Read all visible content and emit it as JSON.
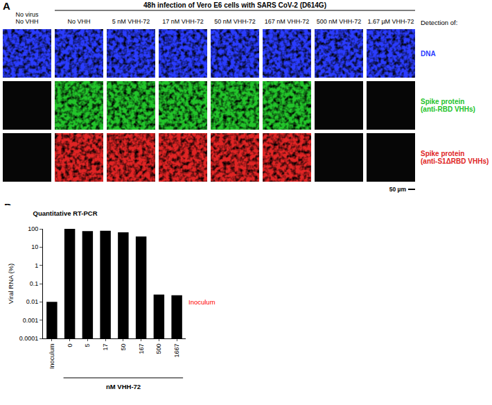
{
  "panel_a": {
    "label": "A",
    "title": "48h infection of Vero E6 cells with SARS CoV-2 (D614G)",
    "columns": [
      "No virus\nNo VHH",
      "No VHH",
      "5 nM VHH-72",
      "17 nM VHH-72",
      "50 nM VHH-72",
      "167 nM VHH-72",
      "500 nM VHH-72",
      "1.67 µM VHH-72"
    ],
    "header": "Detection of:",
    "rows": [
      {
        "label": "DNA",
        "color": "#2a3cff",
        "signal": [
          true,
          true,
          true,
          true,
          true,
          true,
          true,
          true
        ]
      },
      {
        "label": "Spike protein\n(anti-RBD VHHs)",
        "color": "#22c42a",
        "signal": [
          false,
          true,
          true,
          true,
          true,
          true,
          false,
          false
        ]
      },
      {
        "label": "Spike protein\n(anti-S1ΔRBD VHHs)",
        "color": "#e02424",
        "signal": [
          false,
          true,
          true,
          true,
          true,
          true,
          false,
          false
        ]
      }
    ],
    "scale_bar": "50 µm"
  },
  "chart_data": {
    "panel_label": "B",
    "type": "bar",
    "title": "Quantitative RT-PCR",
    "categories": [
      "Inoculum",
      "0",
      "5",
      "17",
      "50",
      "167",
      "500",
      "1667"
    ],
    "values": [
      0.01,
      100,
      75,
      78,
      65,
      38,
      0.025,
      0.023
    ],
    "color": "#000000",
    "ylabel": "Viral RNA (%)",
    "ylim": [
      0.0001,
      100
    ],
    "yticks": [
      0.0001,
      0.001,
      0.01,
      0.1,
      1,
      10,
      100
    ],
    "log": "y",
    "grid": false,
    "reference_line": {
      "value": 0.01,
      "label": "Inoculum",
      "color": "#ff0000"
    },
    "group_label": {
      "text": "nM VHH-72",
      "from": "0",
      "to": "1667"
    }
  }
}
